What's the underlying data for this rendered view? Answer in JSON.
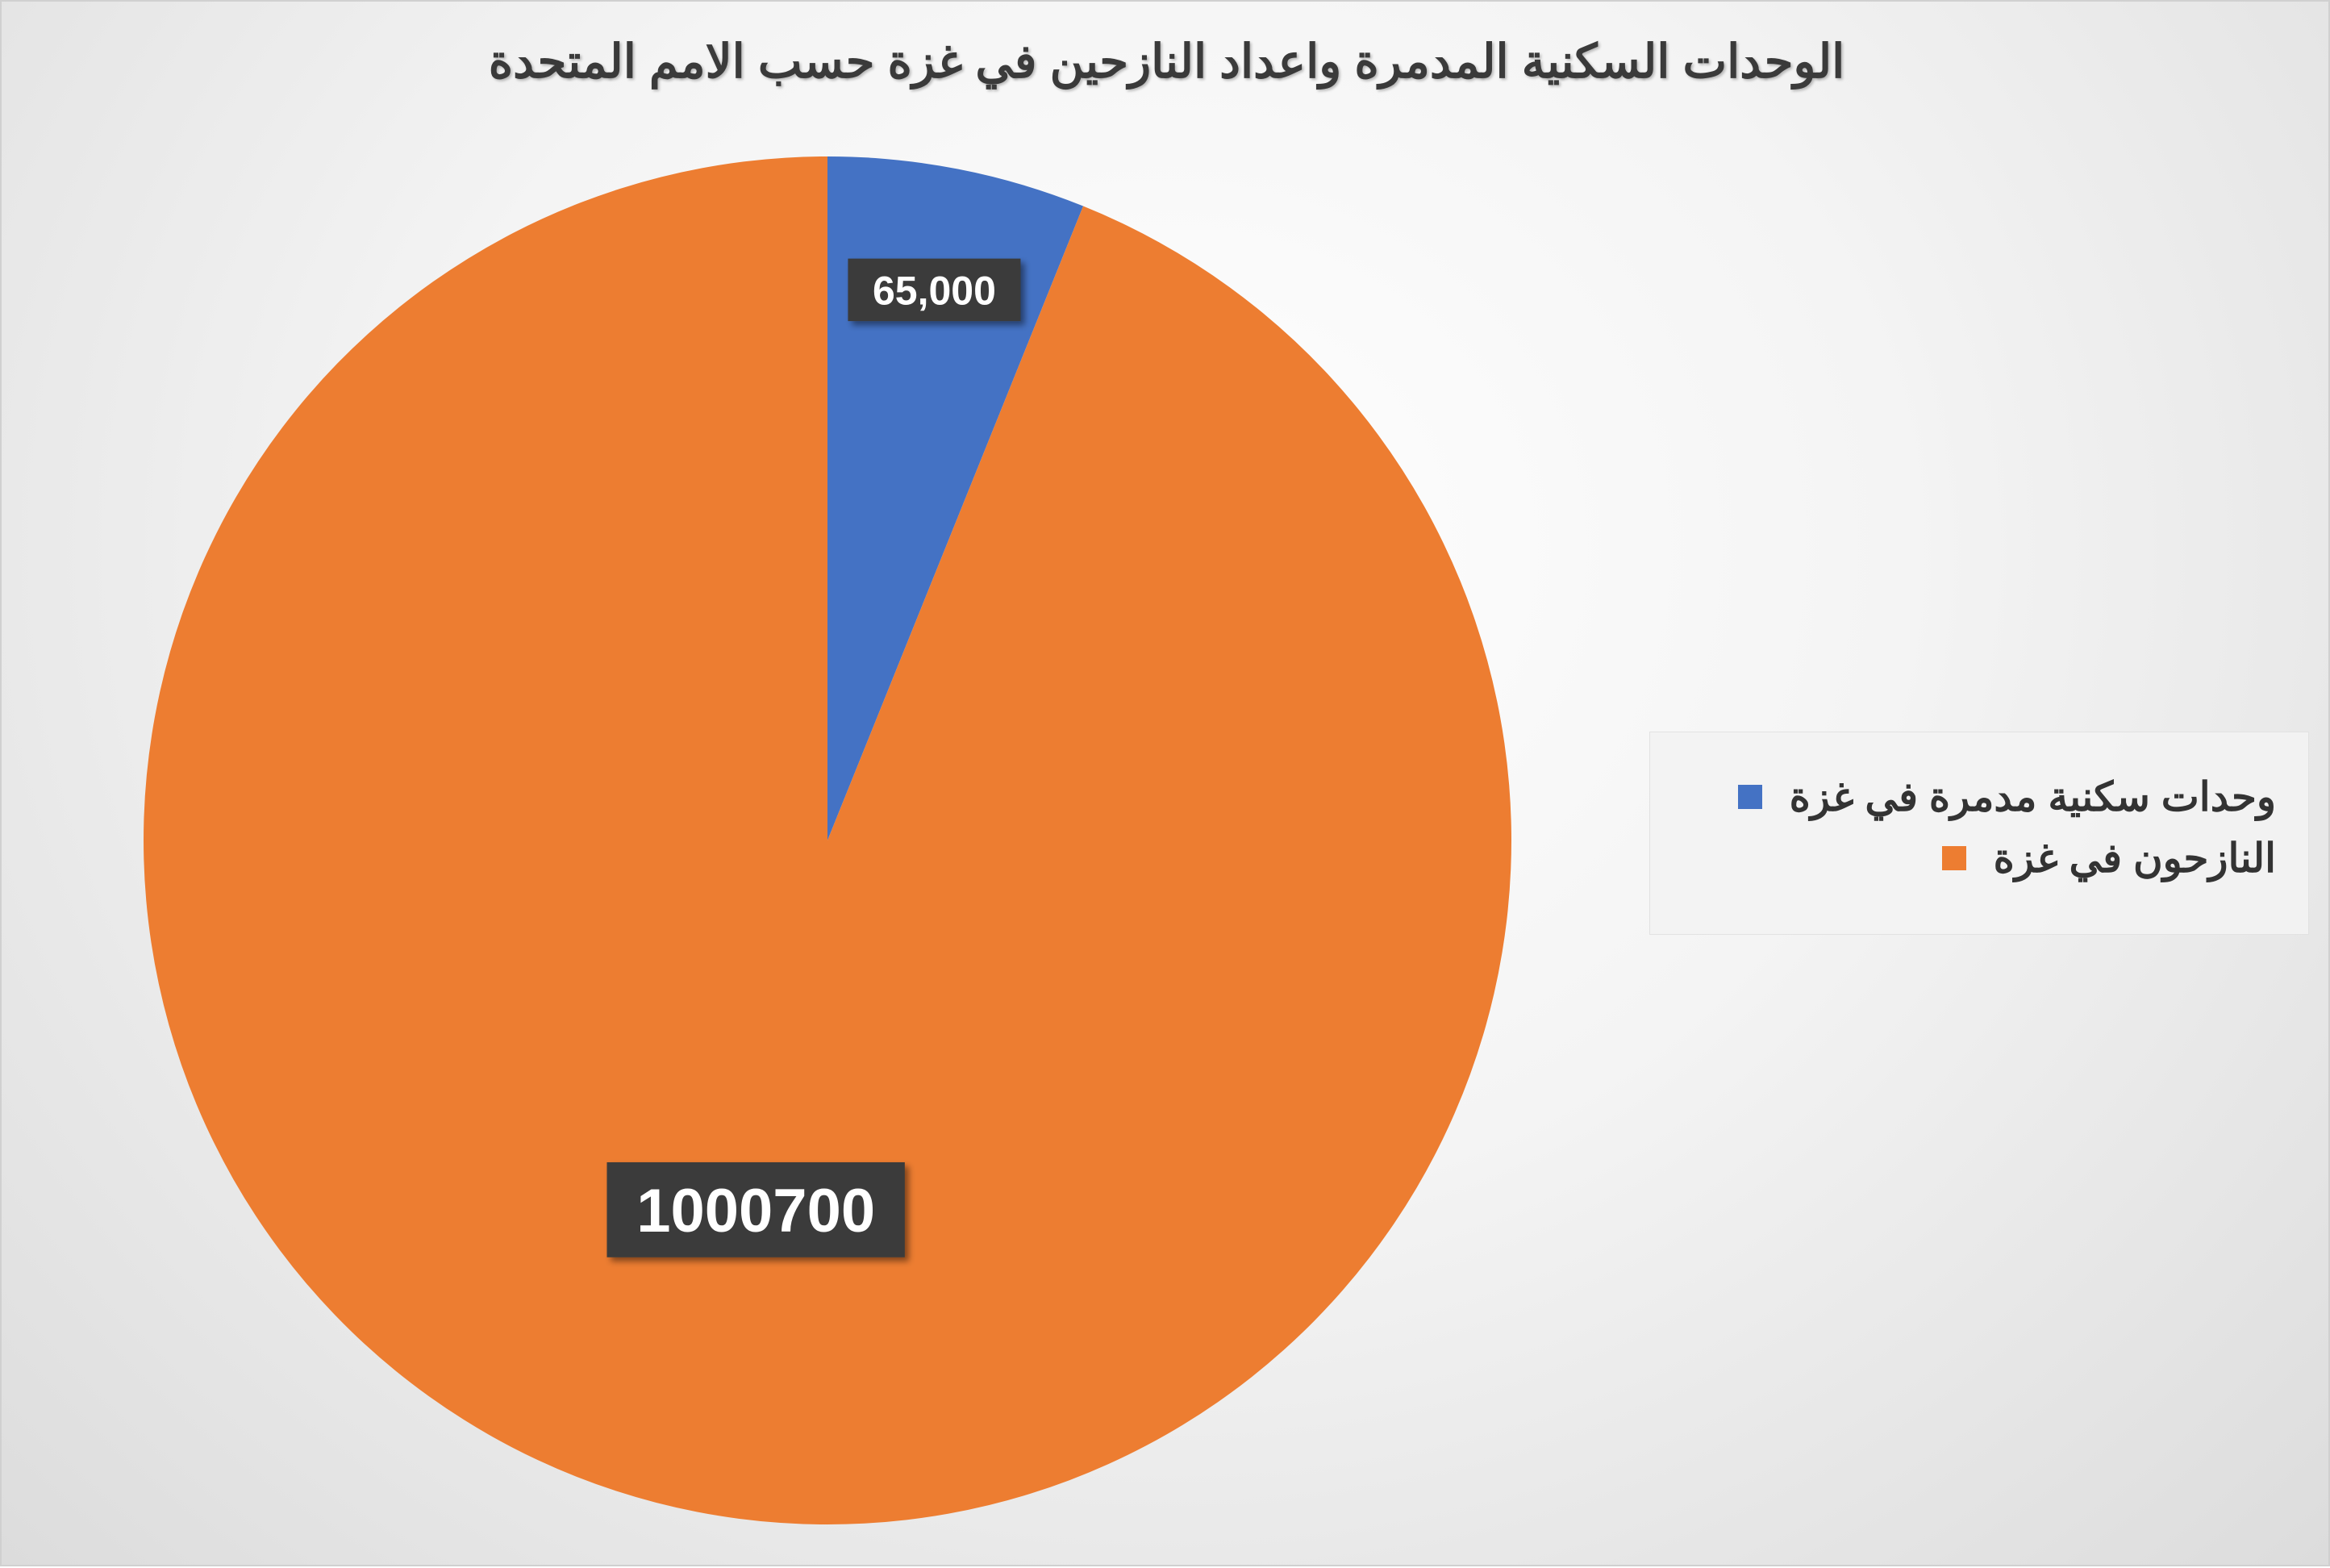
{
  "chart_data": {
    "type": "pie",
    "title": "الوحدات السكنية المدمرة واعداد النازحين في غزة حسب الامم المتحدة",
    "categories": [
      "وحدات سكنية مدمرة في غزة",
      "النازحون في غزة"
    ],
    "values": [
      65000,
      1000700
    ],
    "data_labels": [
      "65,000",
      "1000700"
    ],
    "colors": [
      "#4472C4",
      "#ED7D31"
    ],
    "start_angle_deg": 0,
    "direction": "clockwise",
    "legend": {
      "placement": "right",
      "items": [
        {
          "label": "وحدات سكنية مدمرة في غزة",
          "color": "#4472C4"
        },
        {
          "label": "النازحون في غزة",
          "color": "#ED7D31"
        }
      ]
    }
  }
}
